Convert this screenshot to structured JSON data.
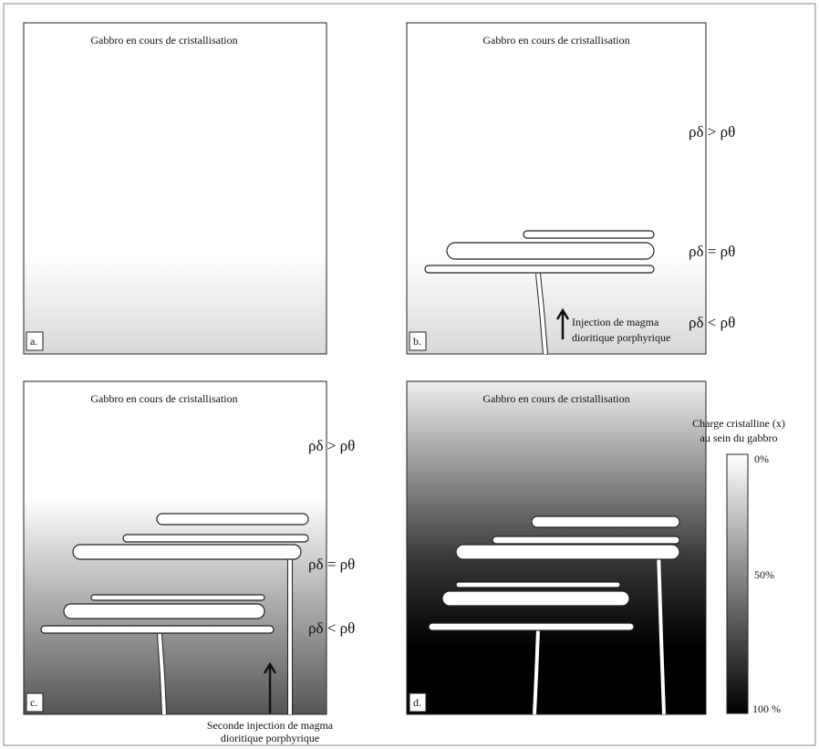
{
  "panels": [
    {
      "label": "a.",
      "title": "Gabbro en cours de cristallisation"
    },
    {
      "label": "b.",
      "title": "Gabbro en cours de cristallisation",
      "density_labels": [
        "ρδ > ρθ",
        "ρδ = ρθ",
        "ρδ < ρθ"
      ],
      "annotation": [
        "Injection de magma",
        "dioritique porphyrique"
      ]
    },
    {
      "label": "c.",
      "title": "Gabbro en cours de cristallisation",
      "density_labels": [
        "ρδ > ρθ",
        "ρδ = ρθ",
        "ρδ < ρθ"
      ],
      "annotation": [
        "Seconde injection de magma",
        "dioritique porphyrique"
      ]
    },
    {
      "label": "d.",
      "title": "Gabbro en cours de cristallisation"
    }
  ],
  "legend": {
    "title": [
      "Charge cristalline (x)",
      "au sein du gabbro"
    ],
    "ticks": [
      "0%",
      "50%",
      "100 %"
    ]
  }
}
